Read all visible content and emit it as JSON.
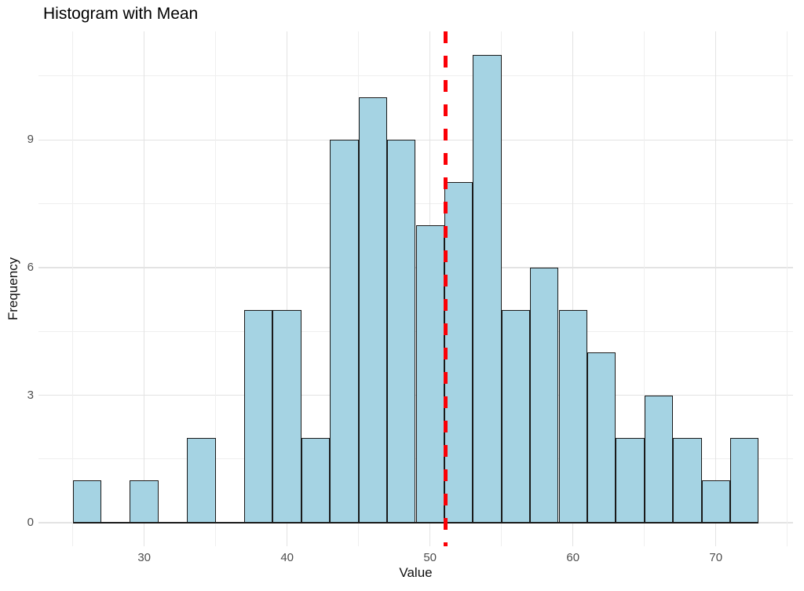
{
  "chart_data": {
    "type": "bar",
    "subtype": "histogram",
    "title": "Histogram with Mean",
    "xlabel": "Value",
    "ylabel": "Frequency",
    "bins": {
      "start": 25,
      "width": 2,
      "counts": [
        1,
        0,
        1,
        0,
        2,
        0,
        5,
        5,
        2,
        9,
        10,
        9,
        7,
        8,
        11,
        5,
        6,
        5,
        4,
        2,
        3,
        2,
        1,
        2
      ]
    },
    "total_n": 100,
    "mean_line": {
      "x": 51.1,
      "style": "dashed",
      "color": "#FB0006"
    },
    "x_ticks": [
      30,
      40,
      50,
      60,
      70
    ],
    "y_ticks": [
      0,
      3,
      6,
      9
    ],
    "x_minor_ticks": [
      25,
      35,
      45,
      55,
      65,
      75
    ],
    "y_minor_ticks": [
      1.5,
      4.5,
      7.5,
      10.5
    ],
    "xlim": [
      22.6,
      75.4
    ],
    "ylim": [
      -0.55,
      11.55
    ],
    "grid": true,
    "legend": "none",
    "colors": {
      "bar_fill": "#A5D3E3",
      "bar_stroke": "#1A1A1A",
      "grid_major": "#E3E3E3",
      "grid_minor": "#EFEFEF",
      "tick_label": "#4D4D4D",
      "baseline": "#1A1A1A",
      "background": "#FFFFFF"
    }
  }
}
